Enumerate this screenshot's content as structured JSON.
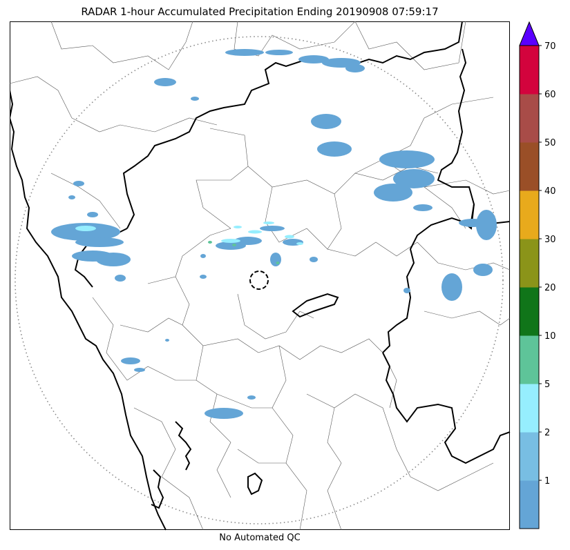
{
  "title": "RADAR 1-hour Accumulated Precipitation Ending 20190908 07:59:17",
  "footer": "No Automated QC",
  "colorbar": {
    "extend_color": "#5a00ff",
    "bins": [
      {
        "color": "#64a5d6"
      },
      {
        "color": "#78bee3"
      },
      {
        "color": "#96eefe"
      },
      {
        "color": "#5ec499"
      },
      {
        "color": "#107519"
      },
      {
        "color": "#8b9419"
      },
      {
        "color": "#e8aa1c"
      },
      {
        "color": "#9a4f27"
      },
      {
        "color": "#a84c48"
      },
      {
        "color": "#d3033d"
      }
    ],
    "tick_labels": [
      "1",
      "2",
      "5",
      "10",
      "20",
      "30",
      "40",
      "50",
      "60",
      "70"
    ]
  }
}
